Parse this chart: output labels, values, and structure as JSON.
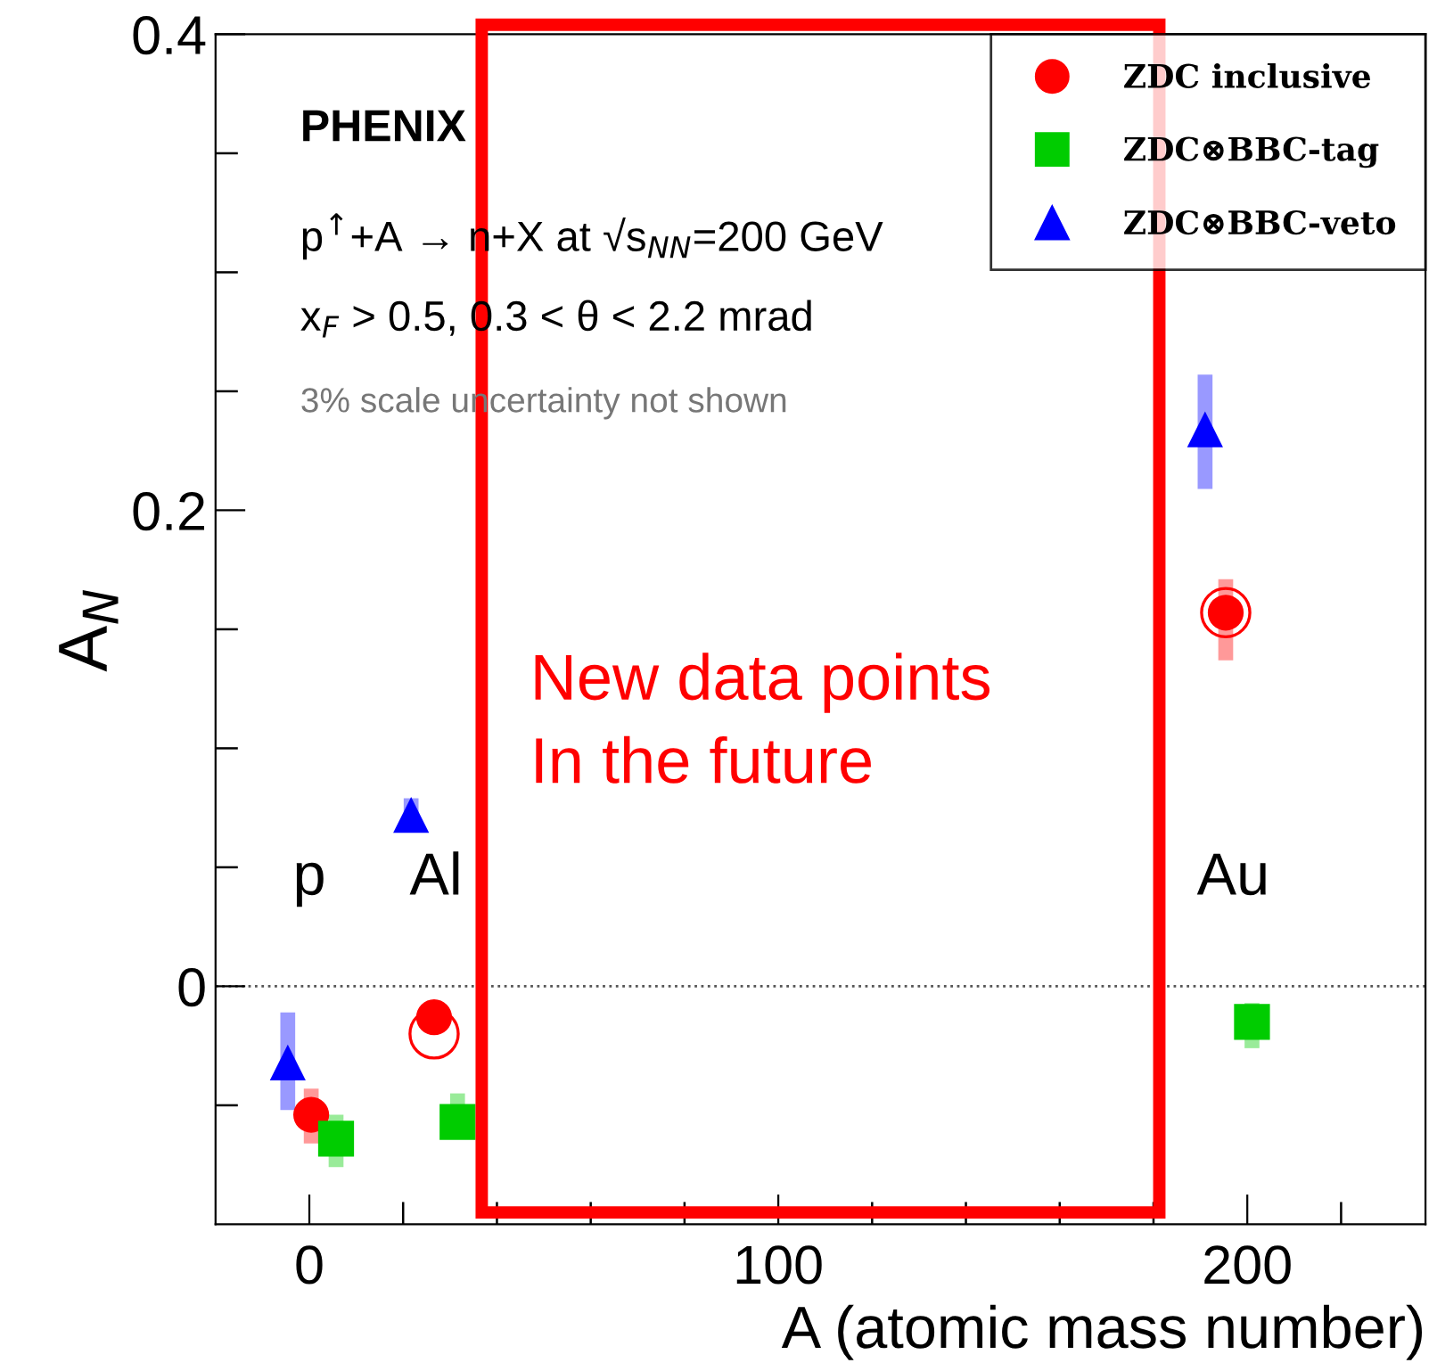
{
  "chart_data": {
    "type": "scatter",
    "xlabel": "A (atomic mass number)",
    "ylabel": "A$_{N}$",
    "xlim": [
      -20,
      238
    ],
    "ylim": [
      -0.1,
      0.4
    ],
    "xticks": [
      0,
      {
        "value": 20,
        "label": null
      },
      {
        "value": 40,
        "label": null
      },
      {
        "value": 60,
        "label": null
      },
      {
        "value": 80,
        "label": null
      },
      100,
      {
        "value": 120,
        "label": null
      },
      {
        "value": 140,
        "label": null
      },
      {
        "value": 160,
        "label": null
      },
      {
        "value": 180,
        "label": null
      },
      200,
      {
        "value": 220,
        "label": null
      }
    ],
    "yticks": [
      {
        "value": -0.05,
        "label": null
      },
      0,
      {
        "value": 0.05,
        "label": null
      },
      {
        "value": 0.1,
        "label": null
      },
      {
        "value": 0.15,
        "label": null
      },
      0.2,
      {
        "value": 0.25,
        "label": null
      },
      {
        "value": 0.3,
        "label": null
      },
      {
        "value": 0.35,
        "label": null
      },
      0.4
    ],
    "series": [
      {
        "name": "ZDC inclusive",
        "color": "#ff0000",
        "marker": "circle",
        "x": [
          0.4,
          26.6,
          195.4
        ],
        "values": [
          -0.054,
          -0.013,
          0.157
        ],
        "errors": [
          [
            -0.066,
            -0.043
          ],
          null,
          [
            0.137,
            0.171
          ]
        ]
      },
      {
        "name": "ZDC⊗BBC-tag",
        "color": "#00cc00",
        "marker": "square",
        "x": [
          5.7,
          31.6,
          201
        ],
        "values": [
          -0.064,
          -0.057,
          -0.015
        ],
        "errors": [
          [
            -0.076,
            -0.054
          ],
          [
            -0.063,
            -0.045
          ],
          [
            -0.026,
            -0.007
          ]
        ]
      },
      {
        "name": "ZDC⊗BBC-veto",
        "color": "#0000ff",
        "marker": "triangle",
        "x": [
          -4.6,
          21.7,
          191
        ],
        "values": [
          -0.032,
          0.072,
          0.234
        ],
        "errors": [
          [
            -0.052,
            -0.011
          ],
          [
            0.065,
            0.079
          ],
          [
            0.209,
            0.257
          ]
        ]
      },
      {
        "color": "#ff0000",
        "marker": "circle",
        "x": [
          26.6,
          195.4
        ],
        "values": [
          -0.02,
          0.157
        ]
      }
    ],
    "ref_lines": [
      {
        "axis": "y",
        "value": 0,
        "color": "#555555",
        "line_style": "dotted"
      }
    ],
    "annotations": [
      "New data points\nIn the future",
      "PHENIX",
      "p$^{↑}$+A → n+X at √s$_{NN}$=200 GeV",
      "x$_{F}$ > 0.5, 0.3 < θ < 2.2 mrad",
      "3% scale uncertainty not shown",
      {
        "text": "p",
        "x": 0,
        "y": 0.0
      },
      {
        "text": "Al",
        "x": 27,
        "y": 0.0
      },
      {
        "text": "Au",
        "x": 197,
        "y": 0.0
      }
    ],
    "legend": "top right",
    "grid": false
  }
}
